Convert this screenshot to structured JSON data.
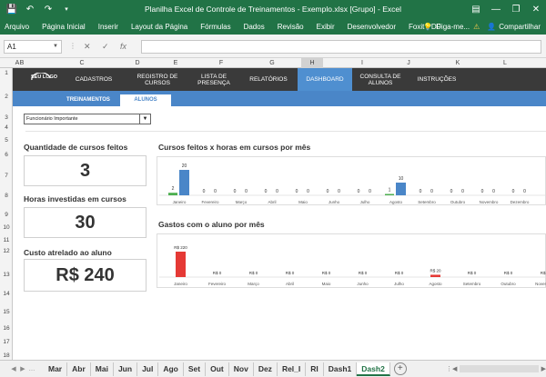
{
  "window": {
    "title": "Planilha Excel de Controle de Treinamentos - Exemplo.xlsx  [Grupo] - Excel"
  },
  "ribbon": {
    "tabs": [
      "Arquivo",
      "Página Inicial",
      "Inserir",
      "Layout da Página",
      "Fórmulas",
      "Dados",
      "Revisão",
      "Exibir",
      "Desenvolvedor",
      "Foxit PDF"
    ],
    "tell_me": "Diga-me...",
    "share": "Compartilhar"
  },
  "formula_bar": {
    "name_box": "A1",
    "fx": "fx",
    "value": ""
  },
  "columns": [
    "A",
    "B",
    "C",
    "D",
    "E",
    "F",
    "G",
    "H",
    "I",
    "J",
    "K",
    "L"
  ],
  "rows": [
    "1",
    "2",
    "3",
    "4",
    "5",
    "6",
    "7",
    "8",
    "9",
    "10",
    "11",
    "12",
    "13",
    "14",
    "15",
    "16",
    "17",
    "18"
  ],
  "dashboard_nav": {
    "logo": "SEU LOGO",
    "items": [
      {
        "label": "CADASTROS"
      },
      {
        "label": "REGISTRO DE CURSOS"
      },
      {
        "label": "LISTA DE PRESENÇA"
      },
      {
        "label": "RELATÓRIOS"
      },
      {
        "label": "DASHBOARD"
      },
      {
        "label": "CONSULTA DE ALUNOS"
      },
      {
        "label": "INSTRUÇÕES"
      }
    ],
    "active": "DASHBOARD"
  },
  "sub_tabs": [
    {
      "label": "TREINAMENTOS"
    },
    {
      "label": "ALUNOS"
    }
  ],
  "selector": {
    "value": "Funcionário Importante"
  },
  "kpis": [
    {
      "label": "Quantidade de cursos feitos",
      "value": "3"
    },
    {
      "label": "Horas investidas em cursos",
      "value": "30"
    },
    {
      "label": "Custo atrelado ao aluno",
      "value": "R$ 240"
    }
  ],
  "charts": {
    "courses_hours": {
      "title": "Cursos feitos x horas em cursos por mês"
    },
    "costs": {
      "title": "Gastos com o aluno por mês"
    }
  },
  "chart_data": [
    {
      "type": "bar",
      "title": "Cursos feitos x horas em cursos por mês",
      "categories": [
        "Janeiro",
        "Fevereiro",
        "Março",
        "Abril",
        "Maio",
        "Junho",
        "Julho",
        "Agosto",
        "Setembro",
        "Outubro",
        "Novembro",
        "Dezembro"
      ],
      "series": [
        {
          "values": [
            2,
            0,
            0,
            0,
            0,
            0,
            0,
            1,
            0,
            0,
            0,
            0
          ],
          "color": "#4caf50"
        },
        {
          "values": [
            20,
            0,
            0,
            0,
            0,
            0,
            0,
            10,
            0,
            0,
            0,
            0
          ],
          "color": "#4a86c8"
        }
      ],
      "ylim": [
        0,
        20
      ]
    },
    {
      "type": "bar",
      "title": "Gastos com o aluno por mês",
      "categories": [
        "Janeiro",
        "Fevereiro",
        "Março",
        "Abril",
        "Maio",
        "Junho",
        "Julho",
        "Agosto",
        "Setembro",
        "Outubro",
        "Novembro",
        "Dezembro"
      ],
      "series": [
        {
          "values": [
            220,
            0,
            0,
            0,
            0,
            0,
            0,
            20,
            0,
            0,
            0,
            0
          ],
          "color": "#e53935"
        }
      ],
      "data_labels": [
        "R$ 220",
        "R$ 0",
        "R$ 0",
        "R$ 0",
        "R$ 0",
        "R$ 0",
        "R$ 0",
        "R$ 20",
        "R$ 0",
        "R$ 0",
        "R$ 0",
        "R$ 0"
      ],
      "ylim": [
        0,
        220
      ]
    }
  ],
  "sheet_tabs": {
    "tabs": [
      "Mar",
      "Abr",
      "Mai",
      "Jun",
      "Jul",
      "Ago",
      "Set",
      "Out",
      "Nov",
      "Dez",
      "Rel_I",
      "RI",
      "Dash1",
      "Dash2"
    ],
    "active": "Dash2"
  }
}
